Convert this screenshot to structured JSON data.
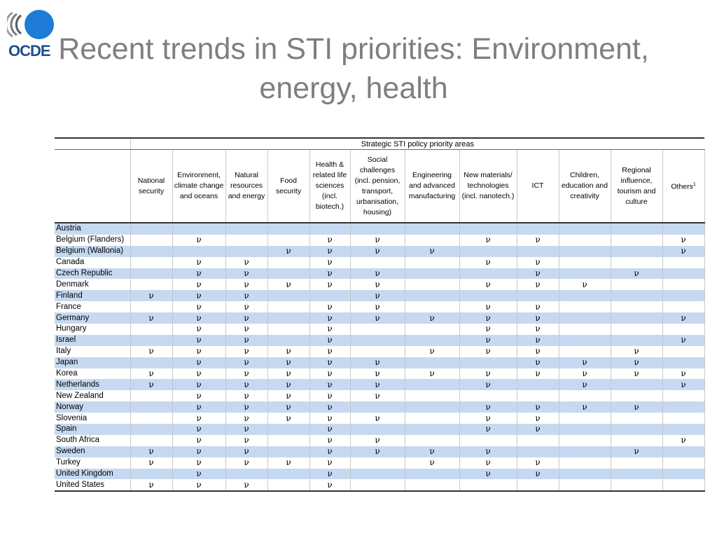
{
  "title_line1": "Recent trends in STI priorities: Environment,",
  "title_line2": "energy, health",
  "logo_text": "OCDE",
  "table": {
    "group_header": "Strategic STI policy priority areas",
    "columns": [
      "National security",
      "Environment, climate change and oceans",
      "Natural resources and energy",
      "Food security",
      "Health & related life sciences (incl. biotech.)",
      "Social challenges (incl. pension, transport, urbanisation, housing)",
      "Engineering and advanced manufacturing",
      "New materials/ technologies (incl. nanotech.)",
      "ICT",
      "Children, education and creativity",
      "Regional influence, tourism and culture",
      "Others"
    ],
    "others_superscript": "1",
    "mark_symbol": "ν",
    "rows": [
      {
        "country": "Austria",
        "marks": [
          0,
          0,
          0,
          0,
          0,
          0,
          0,
          0,
          0,
          0,
          0,
          0
        ]
      },
      {
        "country": "Belgium (Flanders)",
        "marks": [
          0,
          1,
          0,
          0,
          1,
          1,
          0,
          1,
          1,
          0,
          0,
          1
        ]
      },
      {
        "country": "Belgium (Wallonia)",
        "marks": [
          0,
          0,
          0,
          1,
          1,
          1,
          1,
          0,
          0,
          0,
          0,
          1
        ]
      },
      {
        "country": "Canada",
        "marks": [
          0,
          1,
          1,
          0,
          1,
          0,
          0,
          1,
          1,
          0,
          0,
          0
        ]
      },
      {
        "country": "Czech Republic",
        "marks": [
          0,
          1,
          1,
          0,
          1,
          1,
          0,
          0,
          1,
          0,
          1,
          0
        ]
      },
      {
        "country": "Denmark",
        "marks": [
          0,
          1,
          1,
          1,
          1,
          1,
          0,
          1,
          1,
          1,
          0,
          0
        ]
      },
      {
        "country": "Finland",
        "marks": [
          1,
          1,
          1,
          0,
          0,
          1,
          0,
          0,
          0,
          0,
          0,
          0
        ]
      },
      {
        "country": "France",
        "marks": [
          0,
          1,
          1,
          0,
          1,
          1,
          0,
          1,
          1,
          0,
          0,
          0
        ]
      },
      {
        "country": "Germany",
        "marks": [
          1,
          1,
          1,
          0,
          1,
          1,
          1,
          1,
          1,
          0,
          0,
          1
        ]
      },
      {
        "country": "Hungary",
        "marks": [
          0,
          1,
          1,
          0,
          1,
          0,
          0,
          1,
          1,
          0,
          0,
          0
        ]
      },
      {
        "country": "Israel",
        "marks": [
          0,
          1,
          1,
          0,
          1,
          0,
          0,
          1,
          1,
          0,
          0,
          1
        ]
      },
      {
        "country": "Italy",
        "marks": [
          1,
          1,
          1,
          1,
          1,
          0,
          1,
          1,
          1,
          0,
          1,
          0
        ]
      },
      {
        "country": "Japan",
        "marks": [
          0,
          1,
          1,
          1,
          1,
          1,
          0,
          0,
          1,
          1,
          1,
          0
        ]
      },
      {
        "country": "Korea",
        "marks": [
          1,
          1,
          1,
          1,
          1,
          1,
          1,
          1,
          1,
          1,
          1,
          1
        ]
      },
      {
        "country": "Netherlands",
        "marks": [
          1,
          1,
          1,
          1,
          1,
          1,
          0,
          1,
          0,
          1,
          0,
          1
        ]
      },
      {
        "country": "New Zealand",
        "marks": [
          0,
          1,
          1,
          1,
          1,
          1,
          0,
          0,
          0,
          0,
          0,
          0
        ]
      },
      {
        "country": "Norway",
        "marks": [
          0,
          1,
          1,
          1,
          1,
          0,
          0,
          1,
          1,
          1,
          1,
          0
        ]
      },
      {
        "country": "Slovenia",
        "marks": [
          0,
          1,
          1,
          1,
          1,
          1,
          0,
          1,
          1,
          0,
          0,
          0
        ]
      },
      {
        "country": "Spain",
        "marks": [
          0,
          1,
          1,
          0,
          1,
          0,
          0,
          1,
          1,
          0,
          0,
          0
        ]
      },
      {
        "country": "South Africa",
        "marks": [
          0,
          1,
          1,
          0,
          1,
          1,
          0,
          0,
          0,
          0,
          0,
          1
        ]
      },
      {
        "country": "Sweden",
        "marks": [
          1,
          1,
          1,
          0,
          1,
          1,
          1,
          1,
          0,
          0,
          1,
          0
        ]
      },
      {
        "country": "Turkey",
        "marks": [
          1,
          1,
          1,
          1,
          1,
          0,
          1,
          1,
          1,
          0,
          0,
          0
        ]
      },
      {
        "country": "United Kingdom",
        "marks": [
          0,
          1,
          0,
          0,
          1,
          0,
          0,
          1,
          1,
          0,
          0,
          0
        ]
      },
      {
        "country": "United States",
        "marks": [
          1,
          1,
          1,
          0,
          1,
          0,
          0,
          0,
          0,
          0,
          0,
          0
        ]
      }
    ]
  },
  "colors": {
    "title": "#7f7f7f",
    "row_stripe": "#c6d9f1",
    "logo_blue": "#1f4e8c"
  }
}
